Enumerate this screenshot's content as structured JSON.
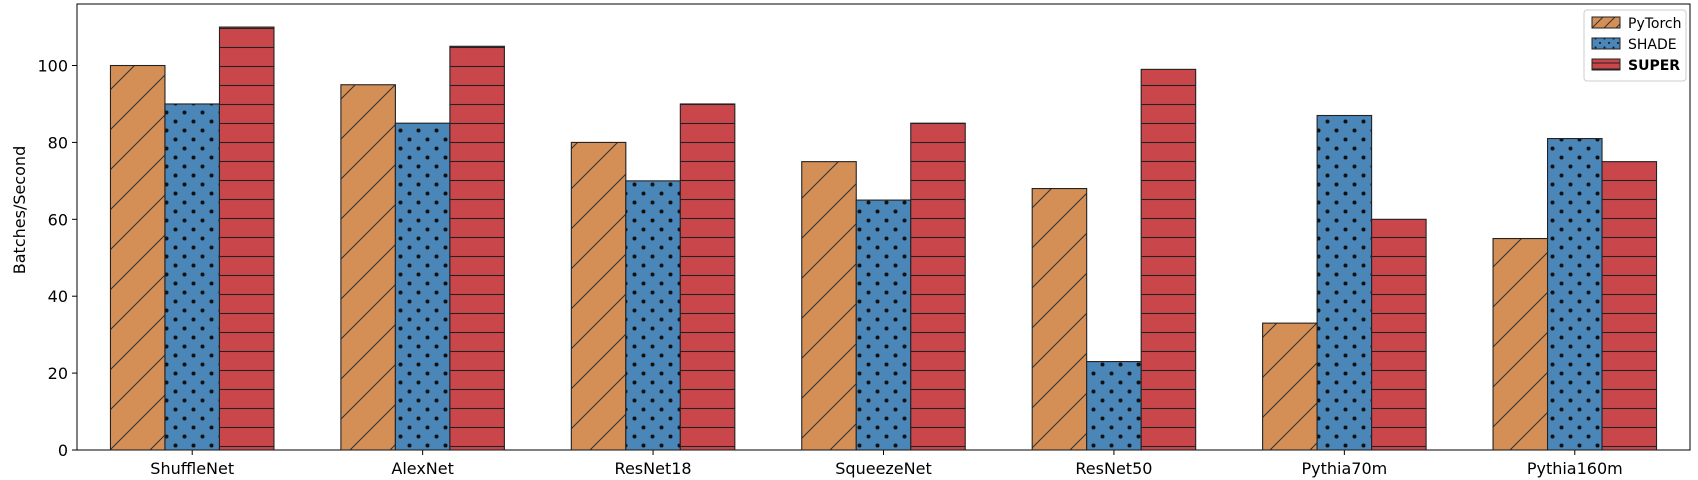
{
  "chart_data": {
    "type": "bar",
    "title": "",
    "xlabel": "",
    "ylabel": "Batches/Second",
    "ylim": [
      0,
      116
    ],
    "yticks": [
      0,
      20,
      40,
      60,
      80,
      100
    ],
    "categories": [
      "ShuffleNet",
      "AlexNet",
      "ResNet18",
      "SqueezeNet",
      "ResNet50",
      "Pythia70m",
      "Pythia160m"
    ],
    "series": [
      {
        "name": "PyTorch",
        "values": [
          100,
          95,
          80,
          75,
          68,
          33,
          55
        ],
        "color": "#d48f56",
        "hatch": "diagonal"
      },
      {
        "name": "SHADE",
        "values": [
          90,
          85,
          70,
          65,
          23,
          87,
          81
        ],
        "color": "#4a86b8",
        "hatch": "dots"
      },
      {
        "name": "SUPER",
        "values": [
          110,
          105,
          90,
          85,
          99,
          60,
          75
        ],
        "color": "#c9474b",
        "hatch": "horizontal"
      }
    ],
    "legend": {
      "position": "top-right",
      "bold_entries": [
        "SUPER"
      ]
    },
    "grid": false
  }
}
